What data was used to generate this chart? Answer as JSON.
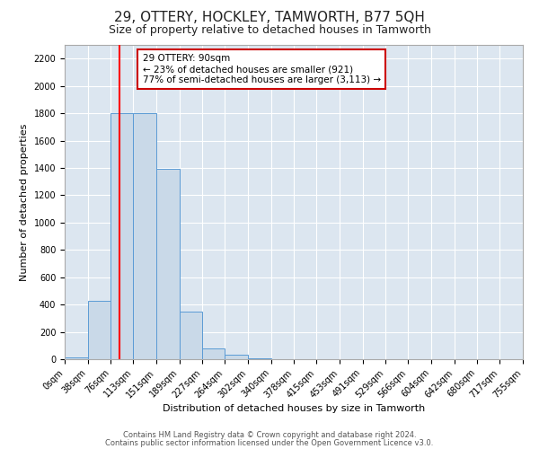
{
  "title": "29, OTTERY, HOCKLEY, TAMWORTH, B77 5QH",
  "subtitle": "Size of property relative to detached houses in Tamworth",
  "xlabel": "Distribution of detached houses by size in Tamworth",
  "ylabel": "Number of detached properties",
  "bin_edges": [
    0,
    38,
    76,
    113,
    151,
    189,
    227,
    264,
    302,
    340,
    378,
    415,
    453,
    491,
    529,
    566,
    604,
    642,
    680,
    717,
    755
  ],
  "bar_heights": [
    10,
    430,
    1800,
    1800,
    1390,
    350,
    80,
    30,
    5,
    2,
    1,
    0,
    0,
    0,
    0,
    0,
    0,
    0,
    0,
    0
  ],
  "bar_color": "#c9d9e8",
  "bar_edgecolor": "#5b9bd5",
  "background_color": "#dce6f0",
  "red_line_x": 90,
  "annotation_text": "29 OTTERY: 90sqm\n← 23% of detached houses are smaller (921)\n77% of semi-detached houses are larger (3,113) →",
  "annotation_box_color": "#ffffff",
  "annotation_box_edgecolor": "#cc0000",
  "ylim": [
    0,
    2300
  ],
  "yticks": [
    0,
    200,
    400,
    600,
    800,
    1000,
    1200,
    1400,
    1600,
    1800,
    2000,
    2200
  ],
  "footer_line1": "Contains HM Land Registry data © Crown copyright and database right 2024.",
  "footer_line2": "Contains public sector information licensed under the Open Government Licence v3.0.",
  "title_fontsize": 11,
  "subtitle_fontsize": 9,
  "tick_fontsize": 7,
  "axis_label_fontsize": 8,
  "annotation_fontsize": 7.5
}
